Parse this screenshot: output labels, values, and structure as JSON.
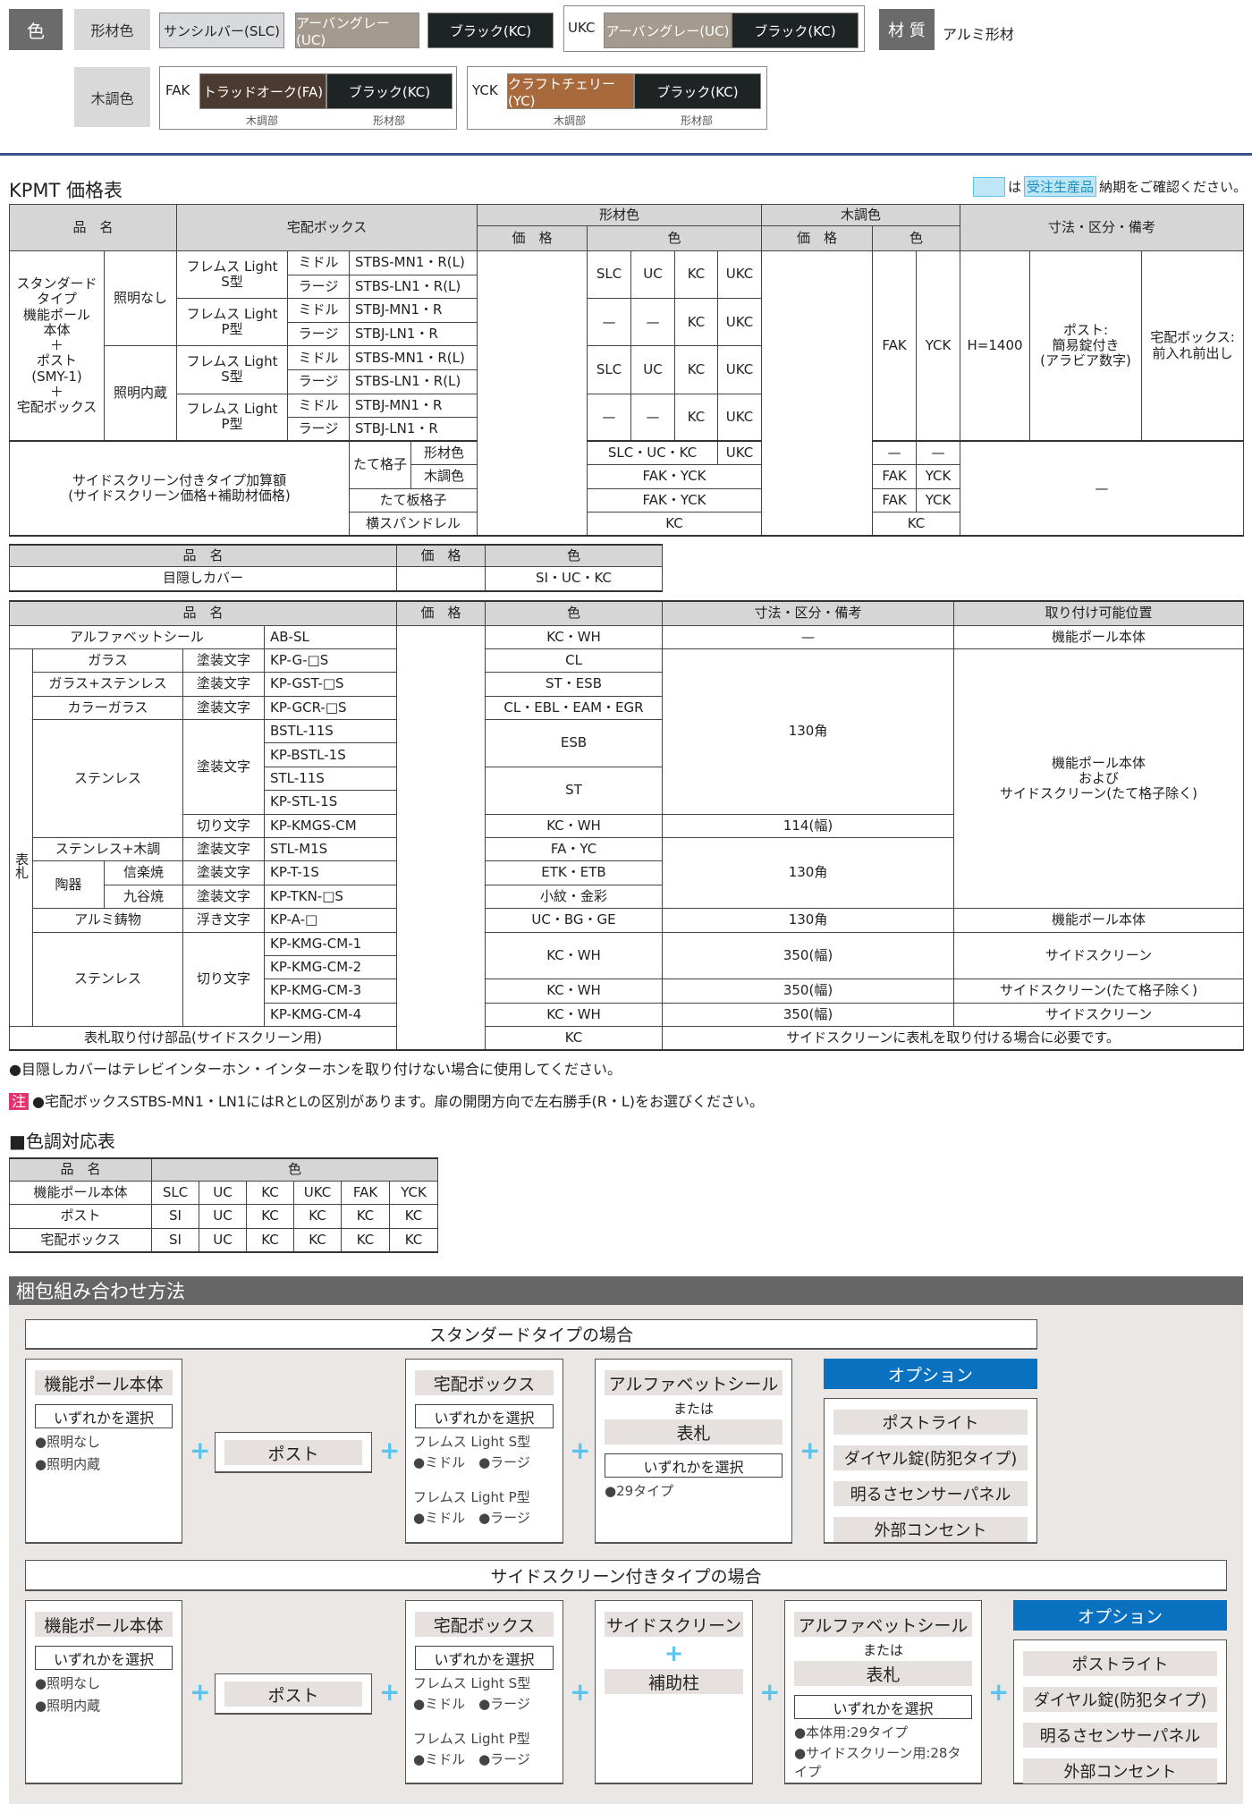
{
  "colors": {
    "label": "色",
    "frame_label": "形材色",
    "wood_label": "木調色",
    "slc": "サンシルバー(SLC)",
    "uc": "アーバングレー(UC)",
    "kc": "ブラック(KC)",
    "ukc_code": "UKC",
    "ukc_a": "アーバングレー(UC)",
    "ukc_b": "ブラック(KC)",
    "material_label": "材 質",
    "material": "アルミ形材",
    "fak_code": "FAK",
    "fak_a": "トラッドオーク(FA)",
    "fak_b": "ブラック(KC)",
    "yck_code": "YCK",
    "yck_a": "クラフトチェリー(YC)",
    "yck_b": "ブラック(KC)",
    "wood_part": "木調部",
    "frame_part": "形材部",
    "swatch_colors": {
      "slc": "#d9dade",
      "uc": "#a49a8e",
      "kc": "#1e2324",
      "fa": "#4a3a30",
      "yc": "#a8693c"
    }
  },
  "price": {
    "title": "KPMT 価格表",
    "legend_is": "は",
    "legend_tag": "受注生産品",
    "legend_text": "納期をご確認ください。",
    "accent": "#5bc4ee"
  },
  "t1": {
    "head": [
      "品　名",
      "宅配ボックス",
      "形材色",
      "木調色",
      "寸法・区分・備考",
      "価　格",
      "色",
      "価　格",
      "色"
    ],
    "rows": [
      [
        "スタンダード\nタイプ\n機能ポール\n本体\n＋\nポスト\n(SMY-1)\n＋\n宅配ボックス",
        "照明なし",
        "フレムス Light\nS型",
        "ミドル",
        "STBS-MN1・R(L)",
        "SLC",
        "UC",
        "KC",
        "UKC",
        "FAK",
        "YCK",
        "H=1400",
        "ポスト:\n簡易錠付き\n(アラビア数字)",
        "宅配ボックス:\n前入れ前出し"
      ],
      [
        "ラージ",
        "STBS-LN1・R(L)"
      ],
      [
        "フレムス Light\nP型",
        "ミドル",
        "STBJ-MN1・R",
        "—",
        "—",
        "KC",
        "UKC"
      ],
      [
        "ラージ",
        "STBJ-LN1・R"
      ],
      [
        "照明内蔵",
        "フレムス Light\nS型",
        "ミドル",
        "STBS-MN1・R(L)",
        "SLC",
        "UC",
        "KC",
        "UKC"
      ],
      [
        "ラージ",
        "STBS-LN1・R(L)"
      ],
      [
        "フレムス Light\nP型",
        "ミドル",
        "STBJ-MN1・R",
        "—",
        "—",
        "KC",
        "UKC"
      ],
      [
        "ラージ",
        "STBJ-LN1・R"
      ]
    ],
    "side": [
      [
        "サイドスクリーン付きタイプ加算額\n(サイドスクリーン価格+補助材価格)",
        "たて格子",
        "形材色",
        "SLC・UC・KC",
        "UKC",
        "—",
        "—",
        "—"
      ],
      [
        "木調色",
        "FAK・YCK",
        "FAK",
        "YCK"
      ],
      [
        "たて板格子",
        "FAK・YCK",
        "FAK",
        "YCK"
      ],
      [
        "横スパンドレル",
        "KC",
        "KC"
      ]
    ]
  },
  "t2": {
    "head": [
      "品　名",
      "価　格",
      "色"
    ],
    "row": [
      "目隠しカバー",
      "SI・UC・KC"
    ]
  },
  "t3": {
    "head": [
      "品　名",
      "価　格",
      "色",
      "寸法・区分・備考",
      "取り付け可能位置"
    ],
    "rows": [
      [
        "アルファベットシール",
        "AB-SL",
        "KC・WH",
        "—",
        "機能ポール本体"
      ],
      [
        "表札",
        "ガラス",
        "塗装文字",
        "KP-G-□S",
        "CL",
        "130角",
        "機能ポール本体\nおよび\nサイドスクリーン(たて格子除く)"
      ],
      [
        "ガラス+ステンレス",
        "塗装文字",
        "KP-GST-□S",
        "ST・ESB"
      ],
      [
        "カラーガラス",
        "塗装文字",
        "KP-GCR-□S",
        "CL・EBL・EAM・EGR"
      ],
      [
        "ステンレス",
        "塗装文字",
        "BSTL-11S",
        "ESB"
      ],
      [
        "KP-BSTL-1S"
      ],
      [
        "STL-11S",
        "ST"
      ],
      [
        "KP-STL-1S"
      ],
      [
        "切り文字",
        "KP-KMGS-CM",
        "KC・WH",
        "114(幅)"
      ],
      [
        "ステンレス+木調",
        "塗装文字",
        "STL-M1S",
        "FA・YC",
        "130角"
      ],
      [
        "陶器",
        "信楽焼",
        "塗装文字",
        "KP-T-1S",
        "ETK・ETB"
      ],
      [
        "九谷焼",
        "塗装文字",
        "KP-TKN-□S",
        "小紋・金彩"
      ],
      [
        "アルミ鋳物",
        "浮き文字",
        "KP-A-□",
        "UC・BG・GE",
        "130角",
        "機能ポール本体"
      ],
      [
        "ステンレス",
        "切り文字",
        "KP-KMG-CM-1",
        "KC・WH",
        "350(幅)",
        "サイドスクリーン"
      ],
      [
        "KP-KMG-CM-2"
      ],
      [
        "KP-KMG-CM-3",
        "KC・WH",
        "350(幅)",
        "サイドスクリーン(たて格子除く)"
      ],
      [
        "KP-KMG-CM-4",
        "KC・WH",
        "350(幅)",
        "サイドスクリーン"
      ],
      [
        "表札取り付け部品(サイドスクリーン用)",
        "KC",
        "サイドスクリーンに表札を取り付ける場合に必要です。"
      ]
    ]
  },
  "notes": {
    "n1": "●目隠しカバーはテレビインターホン・インターホンを取り付けない場合に使用してください。",
    "chu": "注",
    "n2": "●宅配ボックスSTBS-MN1・LN1にはRとLの区別があります。扉の開閉方向で左右勝手(R・L)をお選びください。"
  },
  "t4": {
    "title": "■色調対応表",
    "head": [
      "品　名",
      "色"
    ],
    "rows": [
      [
        "機能ポール本体",
        "SLC",
        "UC",
        "KC",
        "UKC",
        "FAK",
        "YCK"
      ],
      [
        "ポスト",
        "SI",
        "UC",
        "KC",
        "KC",
        "KC",
        "KC"
      ],
      [
        "宅配ボックス",
        "SI",
        "UC",
        "KC",
        "KC",
        "KC",
        "KC"
      ]
    ]
  },
  "combo": {
    "title": "梱包組み合わせ方法",
    "plus": "+",
    "pole": {
      "title": "機能ポール本体",
      "select": "いずれかを選択",
      "items": [
        "●照明なし",
        "●照明内蔵"
      ]
    },
    "post": "ポスト",
    "box": {
      "title": "宅配ボックス",
      "select": "いずれかを選択",
      "s_type": "フレムス Light S型",
      "p_type": "フレムス Light P型",
      "sizes": "●ミドル　●ラージ"
    },
    "alpha": {
      "title": "アルファベットシール",
      "or": "または",
      "plate": "表札",
      "select": "いずれかを選択"
    },
    "option": {
      "title": "オプション",
      "items": [
        "ポストライト",
        "ダイヤル錠(防犯タイプ)",
        "明るさセンサーパネル",
        "外部コンセント"
      ]
    },
    "standard": {
      "title": "スタンダードタイプの場合",
      "alpha_note": "●29タイプ"
    },
    "side": {
      "title": "サイドスクリーン付きタイプの場合",
      "screen": "サイドスクリーン",
      "support": "補助柱",
      "alpha_notes": [
        "●本体用:29タイプ",
        "●サイドスクリーン用:28タイプ"
      ]
    }
  }
}
